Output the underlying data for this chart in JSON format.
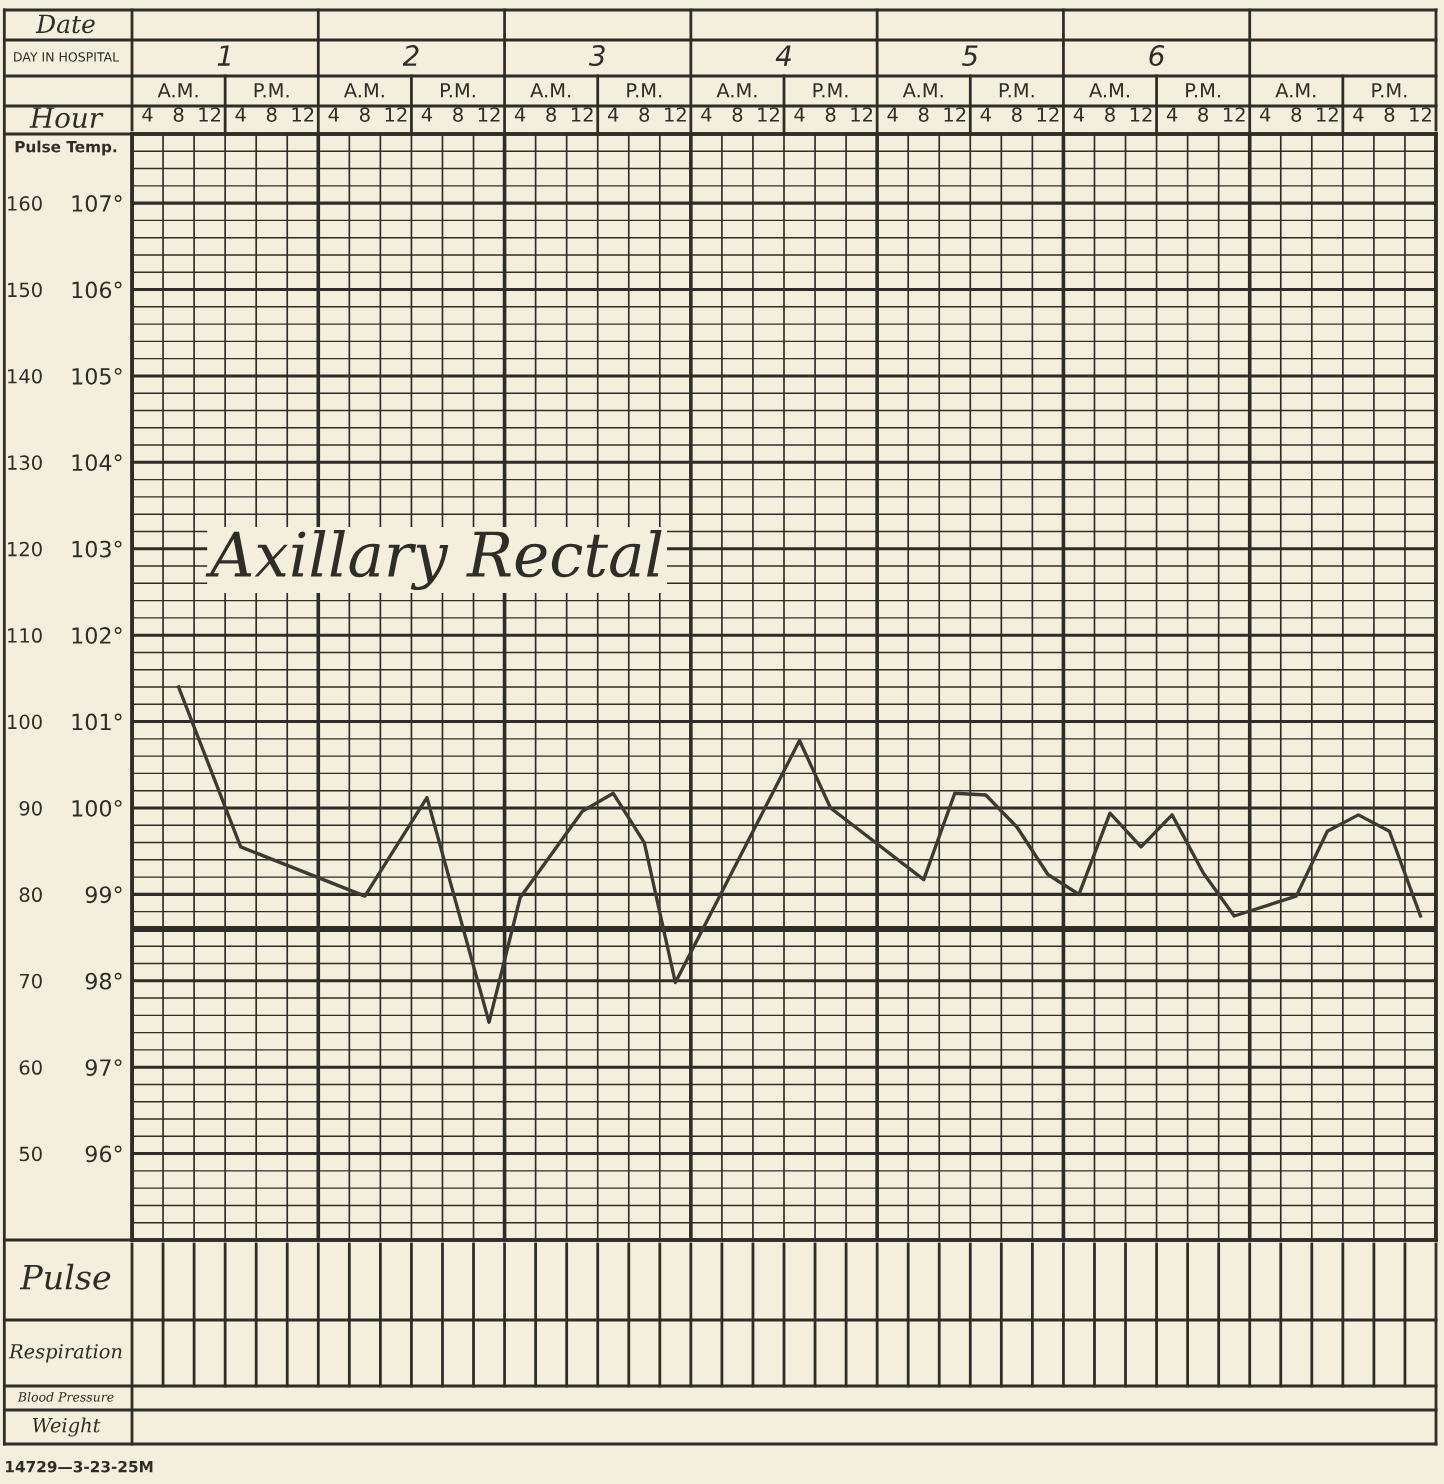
{
  "chart_data": {
    "type": "line",
    "ylabel": "Pulse Temp.",
    "xlabel": "Hour",
    "annotations": [
      "A.M.",
      "P.M.",
      "A.M.",
      "P.M.",
      "A.M.",
      "P.M.",
      "A.M.",
      "P.M.",
      "A.M.",
      "P.M.",
      "A.M.",
      "P.M.",
      "A.M.",
      "P.M.",
      "1",
      "2",
      "3",
      "4",
      "5",
      "6",
      "Date",
      "DAY IN HOSPITAL",
      "Axillary Rectal",
      "Pulse",
      "Respiration",
      "Blood Pressure",
      "Weight",
      "14729—3-23-25M"
    ],
    "categories": [
      "4",
      "8",
      "12",
      "4",
      "8",
      "12",
      "4",
      "8",
      "12",
      "4",
      "8",
      "12",
      "4",
      "8",
      "12",
      "4",
      "8",
      "12",
      "4",
      "8",
      "12",
      "4",
      "8",
      "12",
      "4",
      "8",
      "12",
      "4",
      "8",
      "12",
      "4",
      "8",
      "12",
      "4",
      "8",
      "12",
      "4",
      "8",
      "12",
      "4",
      "8",
      "12"
    ],
    "ylim": [
      95,
      107.8
    ],
    "yticks": [
      {
        "value": 96,
        "label": "96°"
      },
      {
        "value": 97,
        "label": "97°"
      },
      {
        "value": 98,
        "label": "98°"
      },
      {
        "value": 99,
        "label": "99°"
      },
      {
        "value": 100,
        "label": "100°"
      },
      {
        "value": 101,
        "label": "101°"
      },
      {
        "value": 102,
        "label": "102°"
      },
      {
        "value": 103,
        "label": "103°"
      },
      {
        "value": 104,
        "label": "104°"
      },
      {
        "value": 105,
        "label": "105°"
      },
      {
        "value": 106,
        "label": "106°"
      },
      {
        "value": 107,
        "label": "107°"
      }
    ],
    "y2lim": [
      40,
      168
    ],
    "y2ticks": [
      50,
      60,
      70,
      80,
      90,
      100,
      110,
      120,
      130,
      140,
      150,
      160
    ],
    "grid": true,
    "ref_lines": [
      {
        "axis": "y",
        "value": 98.6,
        "color": "#2e2d28"
      }
    ],
    "series": [
      {
        "color": "#3b3a33",
        "values": [
          null,
          101.4,
          null,
          99.55,
          null,
          null,
          null,
          98.98,
          null,
          100.12,
          null,
          97.52,
          98.96,
          null,
          99.96,
          100.17,
          99.6,
          97.98,
          null,
          null,
          null,
          100.78,
          100.0,
          null,
          null,
          99.17,
          100.17,
          100.15,
          99.78,
          99.23,
          99.0,
          99.94,
          99.55,
          99.92,
          99.25,
          98.75,
          null,
          98.98,
          99.73,
          99.92,
          99.73,
          98.75
        ]
      }
    ]
  }
}
